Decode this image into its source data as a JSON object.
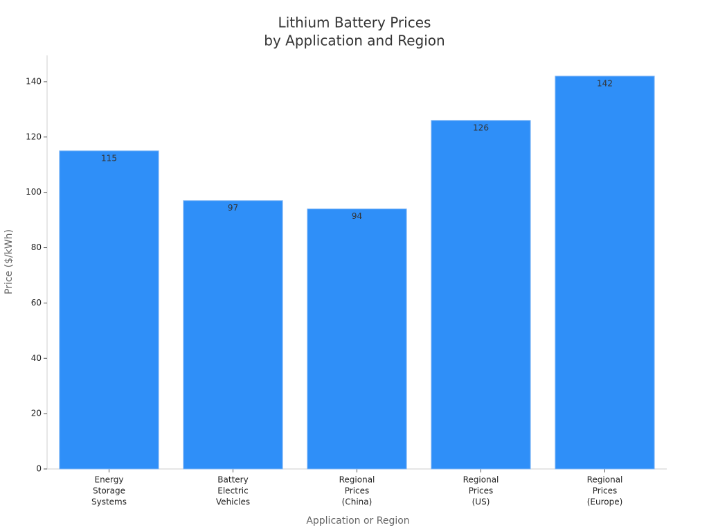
{
  "chart_data": {
    "type": "bar",
    "title": [
      "Lithium Battery Prices",
      "by Application and Region"
    ],
    "x_label": "Application or Region",
    "y_label": "Price ($/kWh)",
    "categories": [
      [
        "Energy",
        "Storage",
        "Systems"
      ],
      [
        "Battery",
        "Electric",
        "Vehicles"
      ],
      [
        "Regional",
        "Prices",
        "(China)"
      ],
      [
        "Regional",
        "Prices",
        "(US)"
      ],
      [
        "Regional",
        "Prices",
        "(Europe)"
      ]
    ],
    "values": [
      115,
      97,
      94,
      126,
      142
    ],
    "color": "#2f8ff8",
    "ylim": [
      0,
      150
    ],
    "yticks": [
      0,
      20,
      40,
      60,
      80,
      100,
      120,
      140
    ],
    "grid": false
  }
}
